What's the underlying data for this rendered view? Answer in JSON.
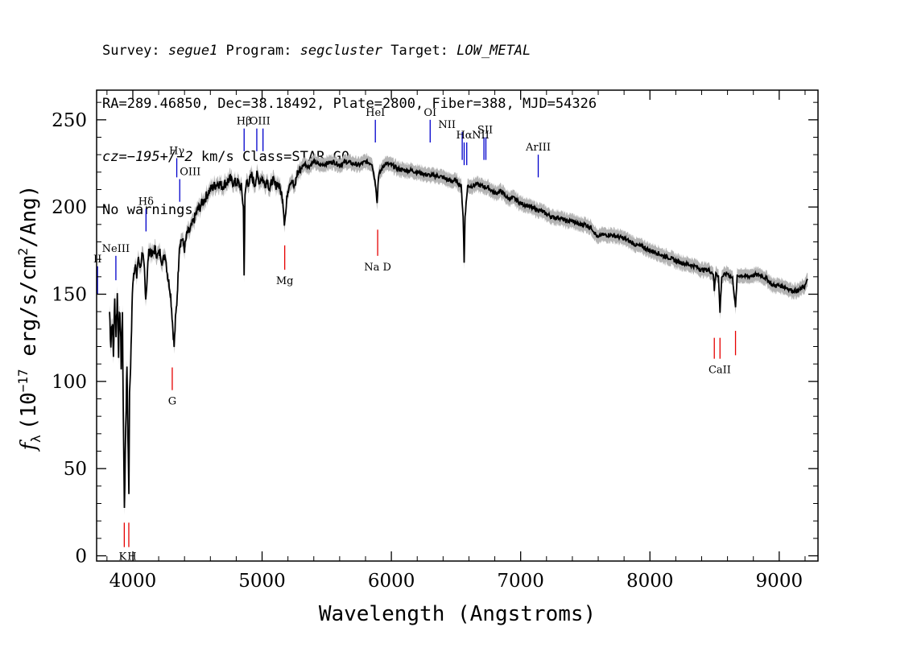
{
  "header": {
    "line1": {
      "survey_label": "Survey: ",
      "survey": "segue1",
      "program_label": " Program: ",
      "program": "segcluster",
      "target_label": " Target: ",
      "target": "LOW_METAL"
    },
    "line2": "RA=289.46850, Dec=38.18492, Plate=2800, Fiber=388, MJD=54326",
    "line3": {
      "cz": "cz=−195+/−2",
      "rest": " km/s Class=STAR G0"
    },
    "line4": "No warnings."
  },
  "chart_data": {
    "type": "line",
    "xlabel": "Wavelength (Angstroms)",
    "ylabel": "f_λ (10^-17 erg/s/cm^2/Ang)",
    "ylabel_parts": {
      "symbol": "f",
      "sub": "λ",
      "pre": "(10",
      "exp1": "−17",
      "mid": " erg/s/cm",
      "exp2": "2",
      "post": "/Ang)"
    },
    "xlim": [
      3720,
      9300
    ],
    "ylim": [
      -3,
      267
    ],
    "x_ticks": [
      4000,
      5000,
      6000,
      7000,
      8000,
      9000
    ],
    "y_ticks": [
      0,
      50,
      100,
      150,
      200,
      250
    ],
    "series_color": "#000000",
    "error_color": "#b4b4b4",
    "spectrum": [
      [
        3820,
        140
      ],
      [
        3830,
        122
      ],
      [
        3840,
        136
      ],
      [
        3850,
        115
      ],
      [
        3860,
        146
      ],
      [
        3870,
        128
      ],
      [
        3880,
        150
      ],
      [
        3890,
        118
      ],
      [
        3900,
        143
      ],
      [
        3910,
        110
      ],
      [
        3920,
        138
      ],
      [
        3930,
        55
      ],
      [
        3935,
        28
      ],
      [
        3945,
        75
      ],
      [
        3955,
        110
      ],
      [
        3965,
        55
      ],
      [
        3970,
        38
      ],
      [
        3975,
        90
      ],
      [
        3990,
        130
      ],
      [
        4000,
        158
      ],
      [
        4010,
        164
      ],
      [
        4020,
        166
      ],
      [
        4030,
        160
      ],
      [
        4040,
        170
      ],
      [
        4050,
        168
      ],
      [
        4060,
        166
      ],
      [
        4070,
        172
      ],
      [
        4080,
        170
      ],
      [
        4090,
        164
      ],
      [
        4100,
        148
      ],
      [
        4110,
        158
      ],
      [
        4120,
        172
      ],
      [
        4130,
        176
      ],
      [
        4150,
        172
      ],
      [
        4170,
        176
      ],
      [
        4190,
        172
      ],
      [
        4210,
        174
      ],
      [
        4230,
        168
      ],
      [
        4250,
        174
      ],
      [
        4270,
        160
      ],
      [
        4290,
        152
      ],
      [
        4300,
        142
      ],
      [
        4310,
        130
      ],
      [
        4320,
        120
      ],
      [
        4330,
        135
      ],
      [
        4340,
        145
      ],
      [
        4350,
        160
      ],
      [
        4360,
        178
      ],
      [
        4380,
        182
      ],
      [
        4400,
        176
      ],
      [
        4420,
        185
      ],
      [
        4440,
        186
      ],
      [
        4460,
        190
      ],
      [
        4480,
        194
      ],
      [
        4500,
        198
      ],
      [
        4520,
        200
      ],
      [
        4540,
        203
      ],
      [
        4560,
        205
      ],
      [
        4580,
        208
      ],
      [
        4600,
        210
      ],
      [
        4630,
        212
      ],
      [
        4660,
        214
      ],
      [
        4690,
        212
      ],
      [
        4720,
        214
      ],
      [
        4750,
        216
      ],
      [
        4780,
        214
      ],
      [
        4810,
        214
      ],
      [
        4840,
        211
      ],
      [
        4855,
        200
      ],
      [
        4861,
        163
      ],
      [
        4868,
        205
      ],
      [
        4880,
        215
      ],
      [
        4900,
        214
      ],
      [
        4920,
        218
      ],
      [
        4940,
        213
      ],
      [
        4960,
        218
      ],
      [
        4980,
        215
      ],
      [
        5000,
        217
      ],
      [
        5020,
        213
      ],
      [
        5040,
        216
      ],
      [
        5060,
        210
      ],
      [
        5080,
        216
      ],
      [
        5100,
        212
      ],
      [
        5120,
        214
      ],
      [
        5140,
        210
      ],
      [
        5160,
        205
      ],
      [
        5172,
        192
      ],
      [
        5183,
        196
      ],
      [
        5195,
        208
      ],
      [
        5210,
        214
      ],
      [
        5230,
        216
      ],
      [
        5250,
        210
      ],
      [
        5270,
        219
      ],
      [
        5300,
        222
      ],
      [
        5330,
        225
      ],
      [
        5360,
        223
      ],
      [
        5400,
        226
      ],
      [
        5450,
        224
      ],
      [
        5500,
        225
      ],
      [
        5550,
        226
      ],
      [
        5600,
        224
      ],
      [
        5650,
        226
      ],
      [
        5700,
        225
      ],
      [
        5750,
        224
      ],
      [
        5800,
        226
      ],
      [
        5850,
        225
      ],
      [
        5880,
        212
      ],
      [
        5890,
        202
      ],
      [
        5900,
        218
      ],
      [
        5950,
        225
      ],
      [
        6000,
        224
      ],
      [
        6050,
        222
      ],
      [
        6100,
        221
      ],
      [
        6150,
        221
      ],
      [
        6200,
        220
      ],
      [
        6250,
        219
      ],
      [
        6300,
        218
      ],
      [
        6350,
        218
      ],
      [
        6400,
        217
      ],
      [
        6450,
        215
      ],
      [
        6500,
        215
      ],
      [
        6540,
        212
      ],
      [
        6555,
        195
      ],
      [
        6563,
        168
      ],
      [
        6570,
        195
      ],
      [
        6590,
        212
      ],
      [
        6620,
        212
      ],
      [
        6660,
        213
      ],
      [
        6700,
        212
      ],
      [
        6750,
        211
      ],
      [
        6800,
        208
      ],
      [
        6850,
        209
      ],
      [
        6900,
        205
      ],
      [
        6950,
        205
      ],
      [
        7000,
        202
      ],
      [
        7050,
        201
      ],
      [
        7100,
        199
      ],
      [
        7150,
        198
      ],
      [
        7200,
        196
      ],
      [
        7250,
        194
      ],
      [
        7300,
        194
      ],
      [
        7350,
        192
      ],
      [
        7400,
        192
      ],
      [
        7450,
        190
      ],
      [
        7500,
        190
      ],
      [
        7550,
        188
      ],
      [
        7600,
        182
      ],
      [
        7620,
        184
      ],
      [
        7650,
        184
      ],
      [
        7700,
        184
      ],
      [
        7750,
        183
      ],
      [
        7800,
        182
      ],
      [
        7850,
        180
      ],
      [
        7900,
        178
      ],
      [
        7950,
        177
      ],
      [
        8000,
        175
      ],
      [
        8050,
        174
      ],
      [
        8100,
        172
      ],
      [
        8150,
        171
      ],
      [
        8200,
        169
      ],
      [
        8250,
        168
      ],
      [
        8300,
        167
      ],
      [
        8350,
        166
      ],
      [
        8400,
        164
      ],
      [
        8450,
        164
      ],
      [
        8490,
        162
      ],
      [
        8498,
        152
      ],
      [
        8510,
        163
      ],
      [
        8530,
        160
      ],
      [
        8542,
        140
      ],
      [
        8555,
        160
      ],
      [
        8600,
        162
      ],
      [
        8640,
        159
      ],
      [
        8662,
        142
      ],
      [
        8675,
        160
      ],
      [
        8700,
        161
      ],
      [
        8750,
        160
      ],
      [
        8800,
        161
      ],
      [
        8850,
        161
      ],
      [
        8900,
        159
      ],
      [
        8950,
        155
      ],
      [
        9000,
        155
      ],
      [
        9050,
        154
      ],
      [
        9100,
        152
      ],
      [
        9150,
        152
      ],
      [
        9200,
        155
      ],
      [
        9220,
        158
      ]
    ],
    "emission_lines": [
      {
        "label": "II",
        "x": 3727,
        "y_top": 166,
        "y_bot": 150
      },
      {
        "label": "NeIII",
        "x": 3869,
        "y_top": 172,
        "y_bot": 158
      },
      {
        "label": "Hδ",
        "x": 4102,
        "y_top": 199,
        "y_bot": 186
      },
      {
        "label": "Hγ",
        "x": 4340,
        "y_top": 228,
        "y_bot": 217
      },
      {
        "label": "OIII",
        "x": 4363,
        "y_top": 216,
        "y_bot": 203
      },
      {
        "label": "Hβ",
        "x": 4861,
        "y_top": 245,
        "y_bot": 232
      },
      {
        "label": "OIII",
        "x": 4959,
        "y_top": 245,
        "y_bot": 232
      },
      {
        "label": "OIII",
        "x": 5007,
        "y_top": 245,
        "y_bot": 232
      },
      {
        "label": "HeI",
        "x": 5876,
        "y_top": 250,
        "y_bot": 237
      },
      {
        "label": "OI",
        "x": 6300,
        "y_top": 250,
        "y_bot": 237
      },
      {
        "label": "NII",
        "x": 6548,
        "y_top": 243,
        "y_bot": 227
      },
      {
        "label": "Hα",
        "x": 6563,
        "y_top": 237,
        "y_bot": 224
      },
      {
        "label": "NII",
        "x": 6583,
        "y_top": 237,
        "y_bot": 224
      },
      {
        "label": "SII",
        "x": 6716,
        "y_top": 240,
        "y_bot": 227
      },
      {
        "label": "SII",
        "x": 6731,
        "y_top": 240,
        "y_bot": 227
      },
      {
        "label": "ArIII",
        "x": 7136,
        "y_top": 230,
        "y_bot": 217
      }
    ],
    "absorption_lines": [
      {
        "label": "K",
        "x": 3934,
        "y_top": 19,
        "y_bot": 5
      },
      {
        "label": "H",
        "x": 3969,
        "y_top": 19,
        "y_bot": 5
      },
      {
        "label": "G",
        "x": 4305,
        "y_top": 108,
        "y_bot": 95
      },
      {
        "label": "Mg",
        "x": 5175,
        "y_top": 178,
        "y_bot": 164
      },
      {
        "label": "Na D",
        "x": 5894,
        "y_top": 187,
        "y_bot": 172
      },
      {
        "label": "CaII",
        "x": 8498,
        "y_top": 125,
        "y_bot": 113
      },
      {
        "label": "CaII",
        "x": 8542,
        "y_top": 125,
        "y_bot": 113
      },
      {
        "label": "CaII",
        "x": 8662,
        "y_top": 129,
        "y_bot": 115
      }
    ],
    "emission_color": "#0000cc",
    "absorption_color": "#e60000"
  }
}
